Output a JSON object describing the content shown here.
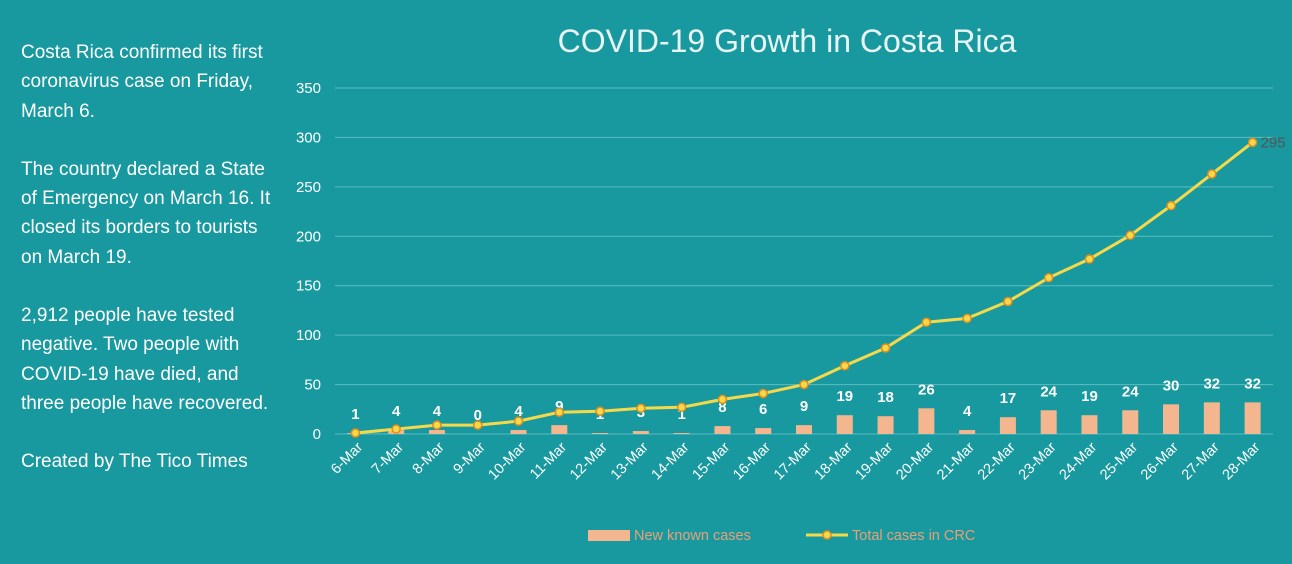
{
  "side_text": {
    "p1": "Costa Rica confirmed its first coronavirus case on Friday, March 6.",
    "p2": "The country declared a State of Emergency on March 16. It closed its borders to tourists on March 19.",
    "p3": "2,912 people have tested negative. Two people with COVID-19 have died, and three people have recovered.",
    "p4": "Created by The Tico Times"
  },
  "colors": {
    "background": "#18999f",
    "bar": "#f3b68f",
    "line": "#f5d94a",
    "marker_fill": "#f5d94a",
    "marker_stroke": "#e28c1f",
    "gridline": "#5cbcc0"
  },
  "chart_data": {
    "type": "bar",
    "title": "COVID-19 Growth in Costa Rica",
    "categories": [
      "6-Mar",
      "7-Mar",
      "8-Mar",
      "9-Mar",
      "10-Mar",
      "11-Mar",
      "12-Mar",
      "13-Mar",
      "14-Mar",
      "15-Mar",
      "16-Mar",
      "17-Mar",
      "18-Mar",
      "19-Mar",
      "20-Mar",
      "21-Mar",
      "22-Mar",
      "23-Mar",
      "24-Mar",
      "25-Mar",
      "26-Mar",
      "27-Mar",
      "28-Mar"
    ],
    "ylim": [
      0,
      350
    ],
    "yticks": [
      0,
      50,
      100,
      150,
      200,
      250,
      300,
      350
    ],
    "grid": true,
    "legend_position": "bottom",
    "series": [
      {
        "name": "New known cases",
        "type": "bar",
        "values": [
          1,
          4,
          4,
          0,
          4,
          9,
          1,
          3,
          1,
          8,
          6,
          9,
          19,
          18,
          26,
          4,
          17,
          24,
          19,
          24,
          30,
          32,
          32
        ],
        "data_labels": [
          "1",
          "4",
          "4",
          "0",
          "4",
          "9",
          "1",
          "3",
          "1",
          "8",
          "6",
          "9",
          "19",
          "18",
          "26",
          "4",
          "17",
          "24",
          "19",
          "24",
          "30",
          "32",
          "32"
        ]
      },
      {
        "name": "Total cases in CRC",
        "type": "line",
        "values": [
          1,
          5,
          9,
          9,
          13,
          22,
          23,
          26,
          27,
          35,
          41,
          50,
          69,
          87,
          113,
          117,
          134,
          158,
          177,
          201,
          231,
          263,
          295
        ],
        "end_label": "295"
      }
    ]
  }
}
